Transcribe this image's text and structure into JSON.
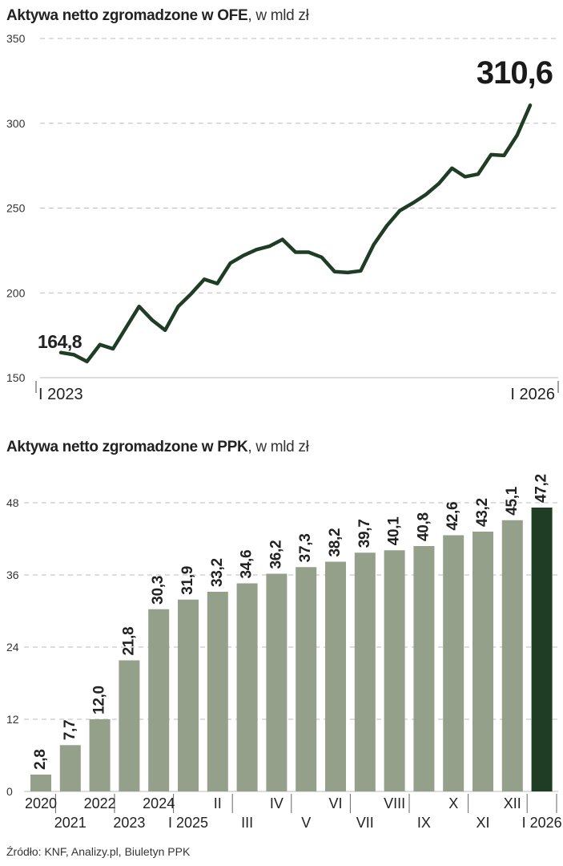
{
  "chart_data": [
    {
      "type": "line",
      "title": "Aktywa netto zgromadzone w OFE",
      "unit": ", w mld zł",
      "ylim": [
        150,
        350
      ],
      "yticks": [
        "350",
        "300",
        "250",
        "200",
        "150"
      ],
      "x_labels": {
        "start": "I 2023",
        "end": "I 2026"
      },
      "grid": true,
      "series": [
        {
          "name": "OFE",
          "values": [
            164.8,
            163.5,
            159.5,
            169.5,
            167.0,
            179.5,
            192.0,
            184.0,
            178.0,
            192.0,
            199.5,
            208.0,
            205.5,
            217.5,
            222.0,
            225.5,
            227.5,
            231.5,
            224.0,
            224.0,
            221.0,
            212.5,
            212.0,
            213.0,
            228.5,
            239.5,
            248.5,
            253.0,
            258.0,
            264.5,
            273.5,
            268.5,
            270.0,
            281.5,
            281.0,
            293.0,
            310.6
          ]
        }
      ],
      "labels": {
        "first": "164,8",
        "last": "310,6"
      }
    },
    {
      "type": "bar",
      "title": "Aktywa netto zgromadzone w PPK",
      "unit": ", w mld zł",
      "ylim": [
        0,
        48
      ],
      "yticks": [
        "48",
        "36",
        "24",
        "12",
        "0"
      ],
      "categories": [
        "2020",
        "2021",
        "2022",
        "2023",
        "2024",
        "I 2025",
        "II",
        "III",
        "IV",
        "V",
        "VI",
        "VII",
        "VIII",
        "IX",
        "X",
        "XI",
        "XII",
        "I 2026"
      ],
      "values": [
        2.8,
        7.7,
        12.0,
        21.8,
        30.3,
        31.9,
        33.2,
        34.6,
        36.2,
        37.3,
        38.2,
        39.7,
        40.1,
        40.8,
        42.6,
        43.2,
        45.1,
        47.2
      ],
      "value_labels": [
        "2,8",
        "7,7",
        "12,0",
        "21,8",
        "30,3",
        "31,9",
        "33,2",
        "34,6",
        "36,2",
        "37,3",
        "38,2",
        "39,7",
        "40,1",
        "40,8",
        "42,6",
        "43,2",
        "45,1",
        "47,2"
      ],
      "bar_color": "#95a08a",
      "highlight_color": "#1e3d24",
      "highlight_index": 17
    }
  ],
  "source": "Źródło: KNF, Analizy.pl, Biuletyn PPK",
  "colors": {
    "line": "#1e3d24",
    "grid": "#bbbbbb",
    "text": "#222222"
  }
}
